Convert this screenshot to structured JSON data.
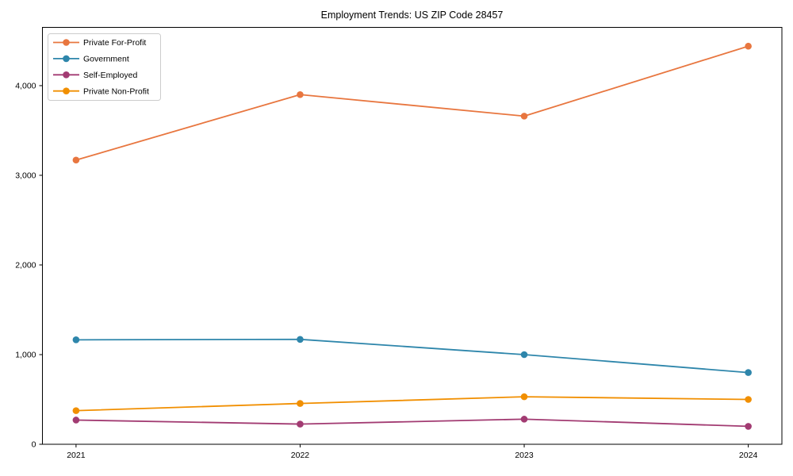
{
  "figure": {
    "background": "#ffffff",
    "axis_color": "#000000",
    "legend_border_color": "#cccccc"
  },
  "chart_data": {
    "type": "line",
    "title": "Employment Trends: US ZIP Code 28457",
    "xlabel": "",
    "ylabel": "",
    "categories": [
      "2021",
      "2022",
      "2023",
      "2024"
    ],
    "series": [
      {
        "name": "Private For-Profit",
        "color": "#E8763F",
        "values": [
          3170,
          3900,
          3660,
          4440
        ]
      },
      {
        "name": "Government",
        "color": "#2E86AB",
        "values": [
          1165,
          1170,
          1000,
          800
        ]
      },
      {
        "name": "Self-Employed",
        "color": "#A23B72",
        "values": [
          270,
          225,
          280,
          200
        ]
      },
      {
        "name": "Private Non-Profit",
        "color": "#F18F01",
        "values": [
          375,
          455,
          530,
          500
        ]
      }
    ],
    "ylim": [
      0,
      4650
    ],
    "yticks": [
      {
        "value": 0,
        "label": "0"
      },
      {
        "value": 1000,
        "label": "1,000"
      },
      {
        "value": 2000,
        "label": "2,000"
      },
      {
        "value": 3000,
        "label": "3,000"
      },
      {
        "value": 4000,
        "label": "4,000"
      }
    ],
    "grid": false,
    "marker": "circle",
    "legend_position": "top-left"
  }
}
